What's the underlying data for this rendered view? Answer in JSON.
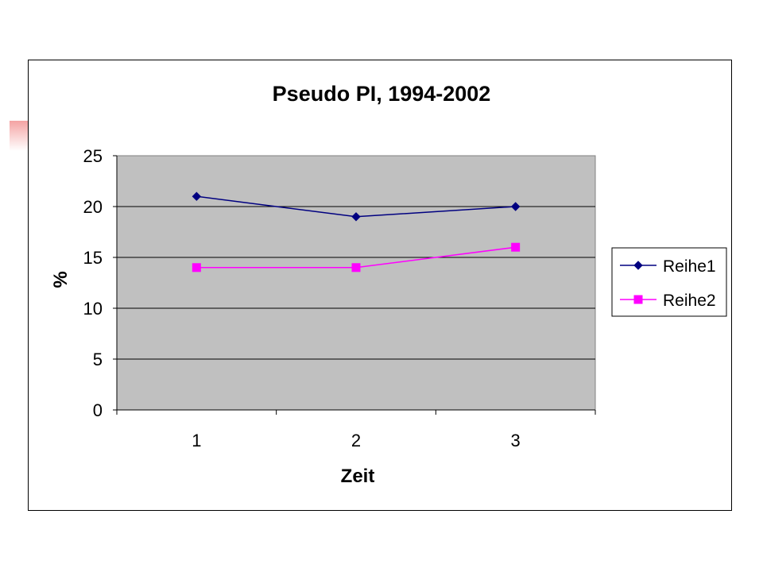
{
  "chart_data": {
    "type": "line",
    "title": "Pseudo PI, 1994-2002",
    "xlabel": "Zeit",
    "ylabel": "%",
    "categories": [
      "1",
      "2",
      "3"
    ],
    "ylim": [
      0,
      25
    ],
    "yticks": [
      "0",
      "5",
      "10",
      "15",
      "20",
      "25"
    ],
    "grid": true,
    "legend_position": "right",
    "series": [
      {
        "name": "Reihe1",
        "values": [
          21,
          19,
          20
        ],
        "color": "#000080",
        "marker": "diamond"
      },
      {
        "name": "Reihe2",
        "values": [
          14,
          14,
          16
        ],
        "color": "#ff00ff",
        "marker": "square"
      }
    ],
    "plot_background": "#c0c0c0"
  }
}
